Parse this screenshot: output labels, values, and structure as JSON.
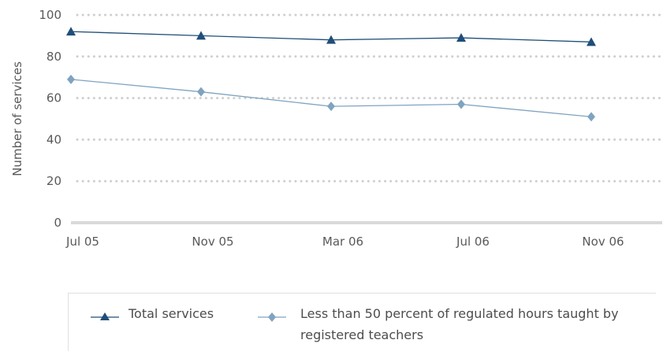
{
  "chart_data": {
    "type": "line",
    "title": "",
    "xlabel": "",
    "ylabel": "Number of services",
    "categories": [
      "Jul 05",
      "Nov 05",
      "Mar 06",
      "Jul 06",
      "Nov 06"
    ],
    "yticks": [
      "0",
      "20",
      "40",
      "60",
      "80",
      "100"
    ],
    "ylim": [
      0,
      100
    ],
    "grid": true,
    "legend_position": "bottom",
    "series": [
      {
        "name": "Total services",
        "marker": "triangle",
        "color": "#1f4e79",
        "values": [
          92,
          90,
          88,
          89,
          87
        ]
      },
      {
        "name": "Less than 50 percent of regulated hours taught by registered teachers",
        "marker": "diamond",
        "color": "#7fa3c0",
        "values": [
          69,
          63,
          56,
          57,
          51
        ]
      }
    ]
  },
  "legend": {
    "item1": "Total services",
    "item2_line1": "Less than 50 percent of regulated hours taught by",
    "item2_line2": "registered teachers"
  }
}
